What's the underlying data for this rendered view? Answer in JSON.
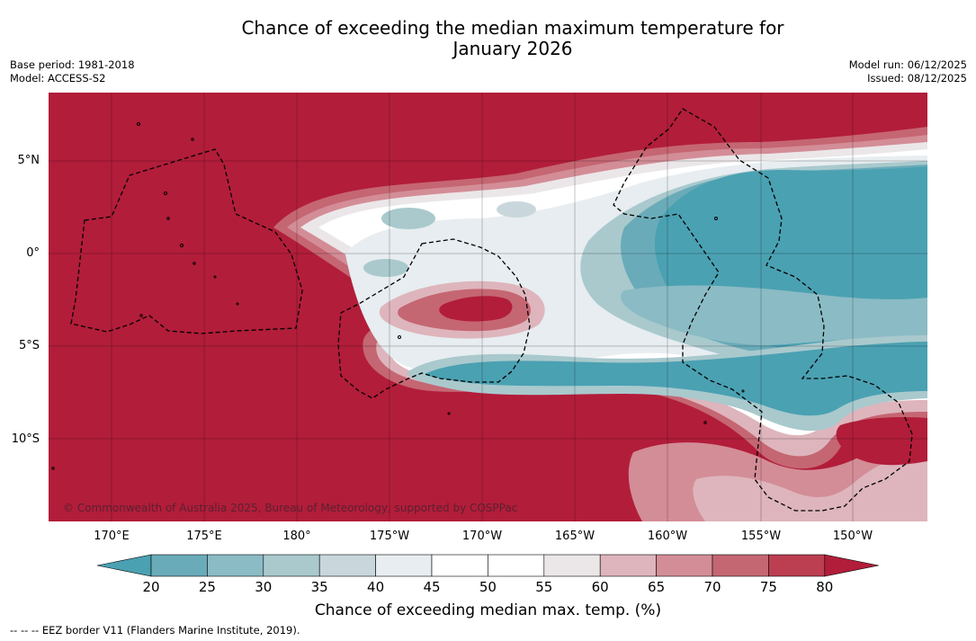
{
  "title_line1": "Chance of exceeding the median maximum temperature for",
  "title_line2": "January 2026",
  "base_period": "Base period: 1981-2018",
  "model": "Model: ACCESS-S2",
  "model_run": "Model run: 06/12/2025",
  "issued": "Issued: 08/12/2025",
  "copyright": "© Commonwealth of Australia 2025, Bureau of Meteorology, supported by COSPPac",
  "lat_labels": [
    "5°N",
    "0°",
    "5°S",
    "10°S"
  ],
  "lon_labels": [
    "170°E",
    "175°E",
    "180°",
    "175°W",
    "170°W",
    "165°W",
    "160°W",
    "155°W",
    "150°W"
  ],
  "colorbar": {
    "label": "Chance of exceeding median max. temp. (%)",
    "ticks": [
      "20",
      "25",
      "30",
      "35",
      "40",
      "45",
      "50",
      "55",
      "60",
      "65",
      "70",
      "75",
      "80"
    ],
    "colors": [
      "#4aa1b2",
      "#6aabb9",
      "#8bbbc5",
      "#a9c9cd",
      "#c9d7dc",
      "#e7edf0",
      "#ffffff",
      "#ffffff",
      "#ebe7e8",
      "#deb5bc",
      "#d38d97",
      "#c56673",
      "#bc3e51",
      "#b21d3a"
    ]
  },
  "footer": "--  --  -- EEZ border V11 (Flanders Marine Institute, 2019)."
}
